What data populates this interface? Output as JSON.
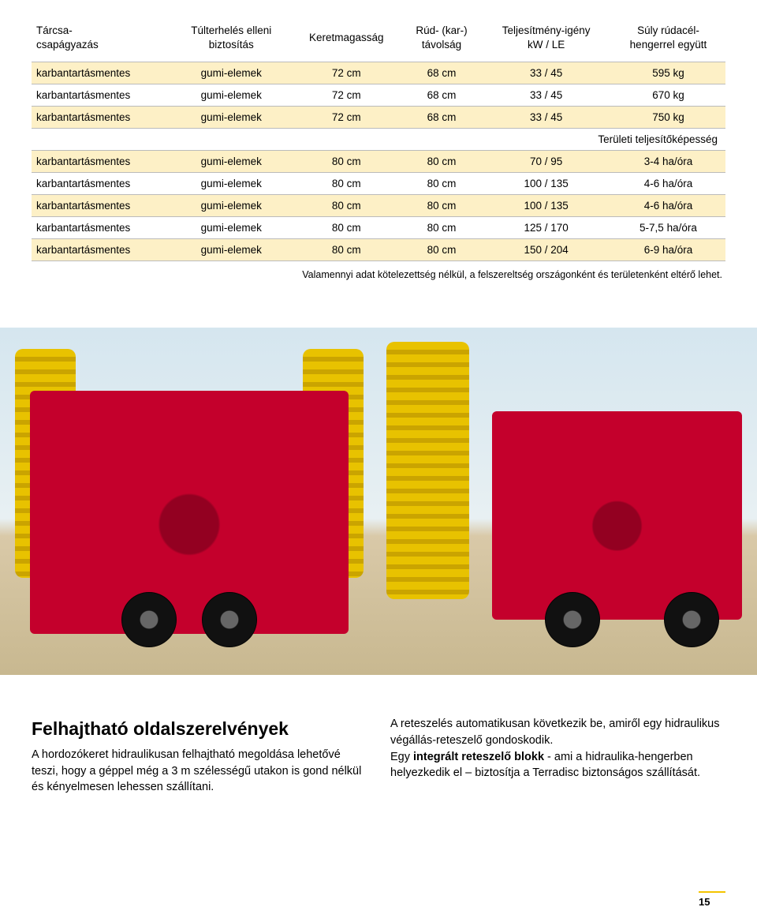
{
  "colors": {
    "stripe": "#fdf0c6",
    "rule": "#bbbbbb",
    "accent": "#f4c400",
    "machine_red": "#c4002c",
    "machine_yellow": "#e8c200"
  },
  "table": {
    "headers": [
      "Tárcsa-\ncsapágyazás",
      "Túlterhelés elleni\nbiztosítás",
      "Keretmagasság",
      "Rúd- (kar-)\ntávolság",
      "Teljesítmény-igény\nkW / LE",
      "Súly rúdacél-\nhengerrel együtt"
    ],
    "rows_a": [
      [
        "karbantartásmentes",
        "gumi-elemek",
        "72 cm",
        "68 cm",
        "33 / 45",
        "595 kg"
      ],
      [
        "karbantartásmentes",
        "gumi-elemek",
        "72 cm",
        "68 cm",
        "33 / 45",
        "670 kg"
      ],
      [
        "karbantartásmentes",
        "gumi-elemek",
        "72 cm",
        "68 cm",
        "33 / 45",
        "750 kg"
      ]
    ],
    "section_label": "Területi teljesítőképesség",
    "rows_b": [
      [
        "karbantartásmentes",
        "gumi-elemek",
        "80 cm",
        "80 cm",
        "70 / 95",
        "3-4 ha/óra"
      ],
      [
        "karbantartásmentes",
        "gumi-elemek",
        "80 cm",
        "80 cm",
        "100 / 135",
        "4-6 ha/óra"
      ],
      [
        "karbantartásmentes",
        "gumi-elemek",
        "80 cm",
        "80 cm",
        "100 / 135",
        "4-6 ha/óra"
      ],
      [
        "karbantartásmentes",
        "gumi-elemek",
        "80 cm",
        "80 cm",
        "125 / 170",
        "5-7,5 ha/óra"
      ],
      [
        "karbantartásmentes",
        "gumi-elemek",
        "80 cm",
        "80 cm",
        "150 / 204",
        "6-9 ha/óra"
      ]
    ]
  },
  "footnote": "Valamennyi adat kötelezettség nélkül, a felszereltség országonként és területenként eltérő lehet.",
  "article": {
    "heading": "Felhajtható oldalszerelvények",
    "left_text": "A hordozókeret hidraulikusan felhajtható megoldása lehetővé teszi, hogy a géppel még a 3 m szélességű utakon is gond nélkül és kényelmesen lehessen szállítani.",
    "right_p1": "A reteszelés automatikusan következik be, amiről egy hidraulikus végállás-reteszelő gondoskodik.",
    "right_p2a": "Egy ",
    "right_p2_strong": "integrált reteszelő blokk",
    "right_p2b": " - ami a hidraulika-hengerben helyezkedik el – biztosítja a Terradisc biztonságos szállítását."
  },
  "page_number": "15"
}
